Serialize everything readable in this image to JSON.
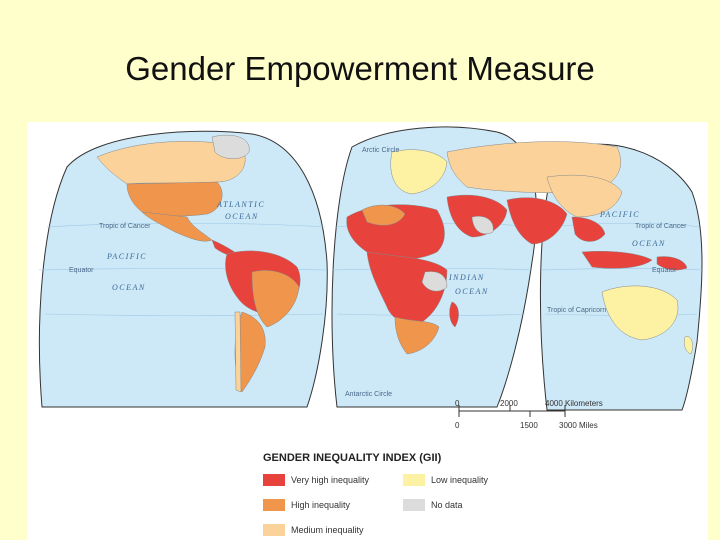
{
  "slide": {
    "title": "Gender Empowerment Measure"
  },
  "map": {
    "colors": {
      "ocean": "#cde8f6",
      "very_high": "#e8423c",
      "high": "#f0954c",
      "medium": "#fad29a",
      "low": "#fdf2a4",
      "no_data": "#dcdcdc"
    },
    "labels": {
      "atlantic": "ATLANTIC",
      "atlantic2": "OCEAN",
      "pacific_w": "PACIFIC",
      "pacific_w2": "OCEAN",
      "pacific_e": "PACIFIC",
      "pacific_e2": "OCEAN",
      "indian": "INDIAN",
      "indian2": "OCEAN",
      "tropic_cancer_w": "Tropic of Cancer",
      "tropic_cancer_e": "Tropic of Cancer",
      "tropic_capricorn": "Tropic of Capricorn",
      "equator_w": "Equator",
      "equator_e": "Equator",
      "antarctic": "Antarctic Circle",
      "arctic": "Arctic Circle"
    },
    "scale": {
      "km_0": "0",
      "km_2000": "2000",
      "km_4000": "4000 Kilometers",
      "mi_0": "0",
      "mi_1500": "1500",
      "mi_3000": "3000 Miles"
    }
  },
  "legend": {
    "title": "GENDER INEQUALITY INDEX (GII)",
    "items": [
      {
        "label": "Very high inequality",
        "color": "#e8423c"
      },
      {
        "label": "High inequality",
        "color": "#f0954c"
      },
      {
        "label": "Medium inequality",
        "color": "#fad29a"
      },
      {
        "label": "Low inequality",
        "color": "#fdf2a4"
      },
      {
        "label": "No data",
        "color": "#dcdcdc"
      }
    ]
  }
}
